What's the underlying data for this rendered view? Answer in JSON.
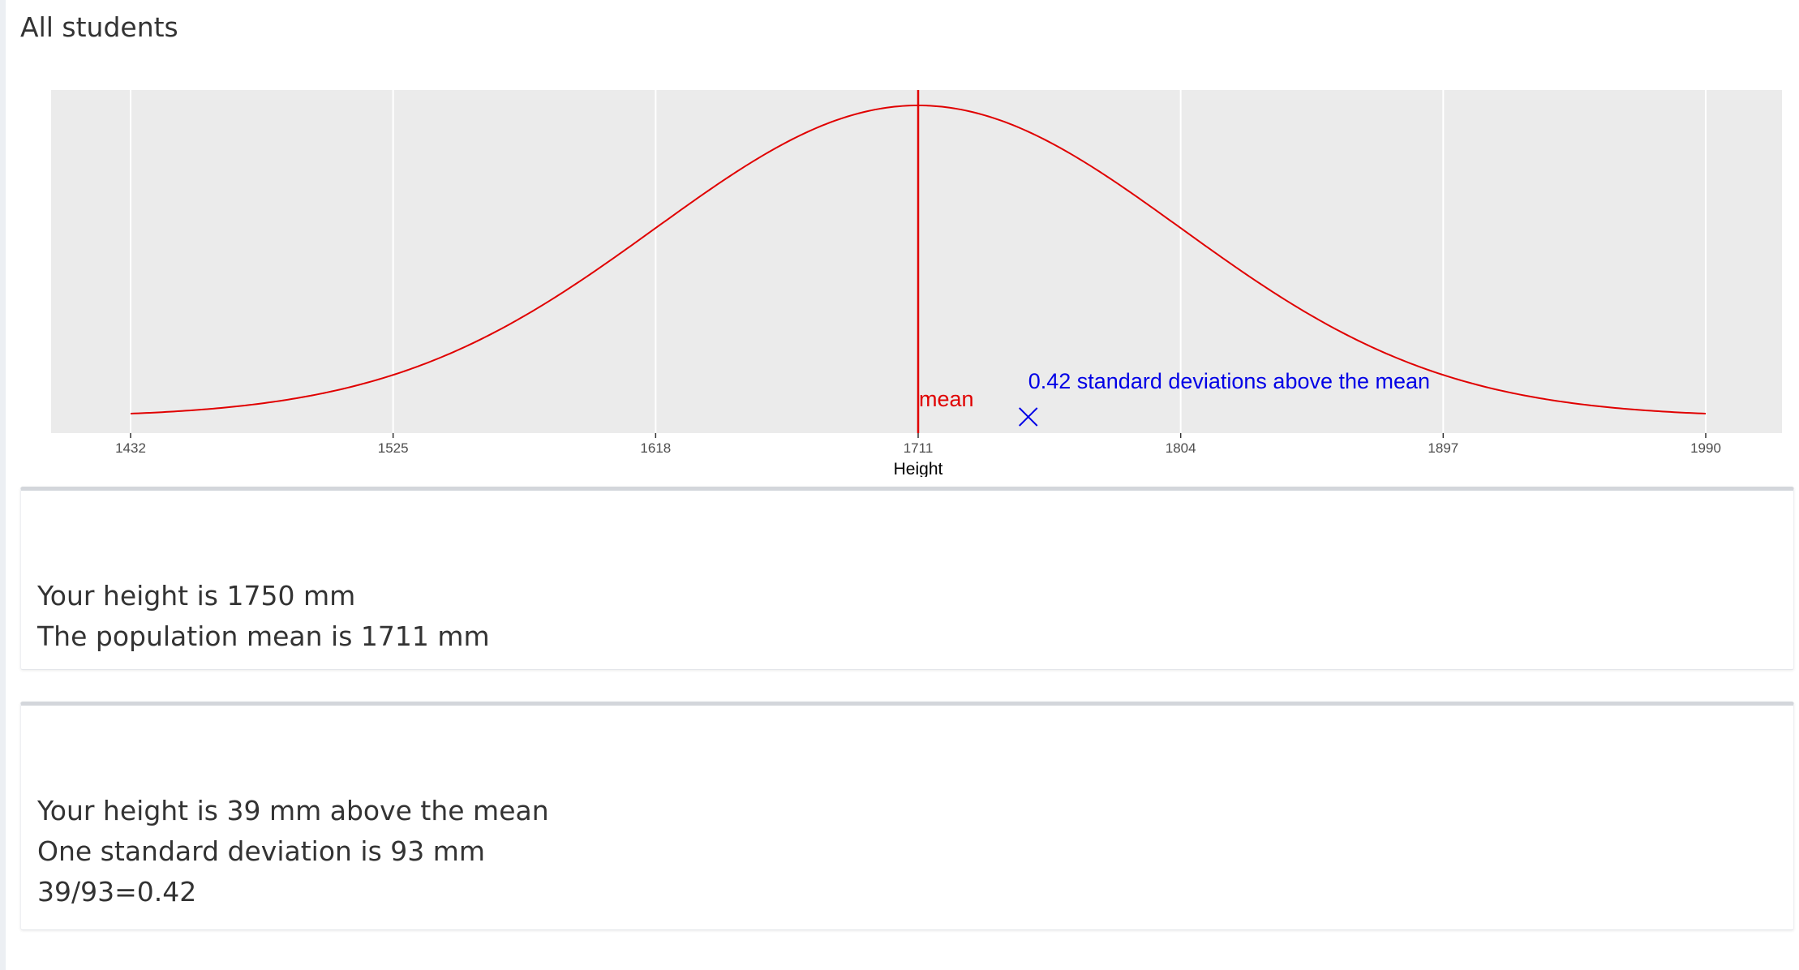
{
  "section": {
    "title": "All students"
  },
  "chart_data": {
    "type": "line",
    "title": "",
    "xlabel": "Height",
    "ylabel": "",
    "xlim": [
      1432,
      1990
    ],
    "x_ticks": [
      "1432",
      "1525",
      "1618",
      "1711",
      "1804",
      "1897",
      "1990"
    ],
    "grid": true,
    "series": [
      {
        "kind": "normal-density-curve",
        "mean": 1711,
        "sd": 93,
        "x_range": [
          1432,
          1990
        ],
        "color": "#e00000"
      }
    ],
    "mean_line": {
      "x": 1711,
      "label": "mean",
      "color": "#e00000"
    },
    "marker": {
      "x": 1750,
      "symbol": "x",
      "color": "#0000e6",
      "label": "0.42 standard deviations above the mean"
    },
    "background_color": "#ebebeb"
  },
  "card1": {
    "line1": "Your height is 1750 mm",
    "line2": "The population mean is 1711 mm"
  },
  "card2": {
    "line1": "Your height is 39 mm above the mean",
    "line2": "One standard deviation is 93 mm",
    "line3": "39/93=0.42"
  }
}
